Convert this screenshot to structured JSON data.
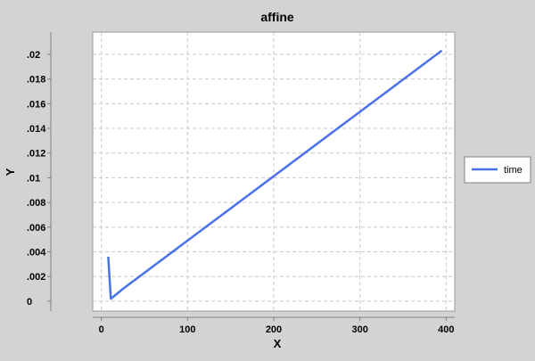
{
  "chart_data": {
    "type": "line",
    "title": "affine",
    "xlabel": "X",
    "ylabel": "Y",
    "xlim": [
      -10,
      410
    ],
    "ylim": [
      -0.0008,
      0.0218
    ],
    "x_ticks": [
      0,
      100,
      200,
      300,
      400
    ],
    "x_tick_labels": [
      "0",
      "100",
      "200",
      "300",
      "400"
    ],
    "y_ticks": [
      0,
      0.002,
      0.004,
      0.006,
      0.008,
      0.01,
      0.012,
      0.014,
      0.016,
      0.018,
      0.02
    ],
    "y_tick_labels": [
      "0",
      ".002",
      ".004",
      ".006",
      ".008",
      ".01",
      ".012",
      ".014",
      ".016",
      ".018",
      ".02"
    ],
    "grid": true,
    "legend_position": "right",
    "series": [
      {
        "name": "time",
        "color": "#4a72e8",
        "x": [
          8,
          11,
          25,
          395
        ],
        "y": [
          0.0036,
          0.0002,
          0.001,
          0.0203
        ]
      }
    ]
  }
}
